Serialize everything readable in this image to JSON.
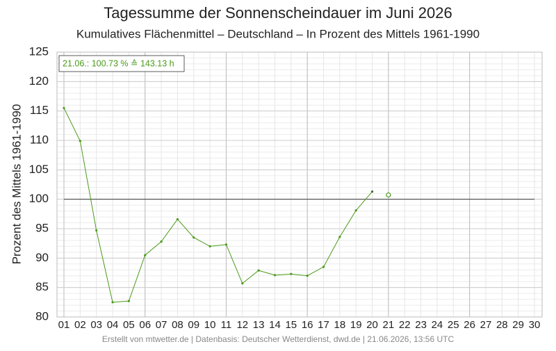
{
  "chart_data": {
    "type": "line",
    "title": "Tagessumme der Sonnenscheindauer im Juni 2026",
    "subtitle": "Kumulatives Flächenmittel – Deutschland – In Prozent des Mittels 1961-1990",
    "y_label": "Prozent des Mittels 1961-1990",
    "annotation": "21.06.: 100.73 % ≙ 143.13 h",
    "footer": "Erstellt von mtwetter.de | Datenbasis: Deutscher Wetterdienst, dwd.de | 21.06.2026, 13:56 UTC",
    "categories": [
      "01",
      "02",
      "03",
      "04",
      "05",
      "06",
      "07",
      "08",
      "09",
      "10",
      "11",
      "12",
      "13",
      "14",
      "15",
      "16",
      "17",
      "18",
      "19",
      "20",
      "21",
      "22",
      "23",
      "24",
      "25",
      "26",
      "27",
      "28",
      "29",
      "30"
    ],
    "series": [
      {
        "color": "#4a9a1a",
        "style": "line",
        "values": [
          115.5,
          109.9,
          94.7,
          82.5,
          82.7,
          90.5,
          92.8,
          96.6,
          93.5,
          92.0,
          92.3,
          85.7,
          87.9,
          87.1,
          87.3,
          87.0,
          88.5,
          93.6,
          98.1,
          101.3,
          null,
          null,
          null,
          null,
          null,
          null,
          null,
          null,
          null,
          null
        ]
      },
      {
        "color": "#4a9a1a",
        "style": "open-marker",
        "values": [
          null,
          null,
          null,
          null,
          null,
          null,
          null,
          null,
          null,
          null,
          null,
          null,
          null,
          null,
          null,
          null,
          null,
          null,
          null,
          null,
          100.73,
          null,
          null,
          null,
          null,
          null,
          null,
          null,
          null,
          null
        ]
      }
    ],
    "reference_line": 100,
    "ylim": [
      80,
      125
    ],
    "yticks": [
      80,
      85,
      90,
      95,
      100,
      105,
      110,
      115,
      120,
      125
    ],
    "grid": true
  }
}
